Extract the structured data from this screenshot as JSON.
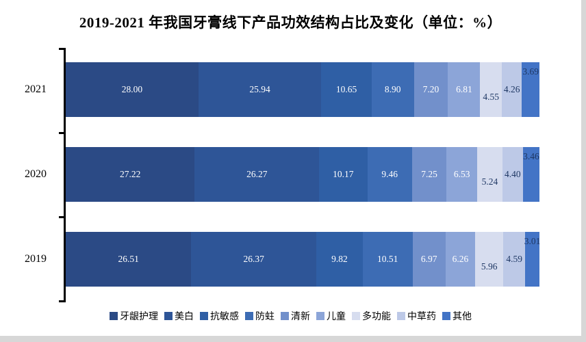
{
  "page": {
    "background_color": "#d7d7d7",
    "panel_color": "#ffffff",
    "axis_color": "#000000"
  },
  "title": "2019-2021 年我国牙膏线下产品功效结构占比及变化（单位：%）",
  "chart_data": {
    "type": "bar",
    "orientation": "horizontal",
    "stacked": true,
    "unit": "%",
    "xlim": [
      0,
      100
    ],
    "grid": false,
    "legend_position": "bottom",
    "categories": [
      "2021",
      "2020",
      "2019"
    ],
    "series": [
      {
        "name": "牙龈护理",
        "color": "#2b4a85",
        "label_color": "#ffffff",
        "label_dy": 0,
        "values": [
          28.0,
          27.22,
          26.51
        ]
      },
      {
        "name": "美白",
        "color": "#2e5597",
        "label_color": "#ffffff",
        "label_dy": 0,
        "values": [
          25.94,
          26.27,
          26.37
        ]
      },
      {
        "name": "抗敏感",
        "color": "#2f5fa5",
        "label_color": "#ffffff",
        "label_dy": 0,
        "values": [
          10.65,
          10.17,
          9.82
        ]
      },
      {
        "name": "防蛀",
        "color": "#3d6cb4",
        "label_color": "#ffffff",
        "label_dy": 0,
        "values": [
          8.9,
          9.46,
          10.51
        ]
      },
      {
        "name": "清新",
        "color": "#7290cb",
        "label_color": "#ffffff",
        "label_dy": 0,
        "values": [
          7.2,
          7.25,
          6.97
        ]
      },
      {
        "name": "儿童",
        "color": "#8ca5d8",
        "label_color": "#ffffff",
        "label_dy": 0,
        "values": [
          6.81,
          6.53,
          6.26
        ]
      },
      {
        "name": "多功能",
        "color": "#d7ddef",
        "label_color": "#1f3864",
        "label_dy": 11,
        "values": [
          4.55,
          5.24,
          5.96
        ]
      },
      {
        "name": "中草药",
        "color": "#bdc9e7",
        "label_color": "#1f3864",
        "label_dy": 0,
        "values": [
          4.26,
          4.4,
          4.59
        ]
      },
      {
        "name": "其他",
        "color": "#4374c6",
        "label_color": "#1f3864",
        "label_dy": -26,
        "values": [
          3.69,
          3.46,
          3.01
        ]
      }
    ]
  }
}
